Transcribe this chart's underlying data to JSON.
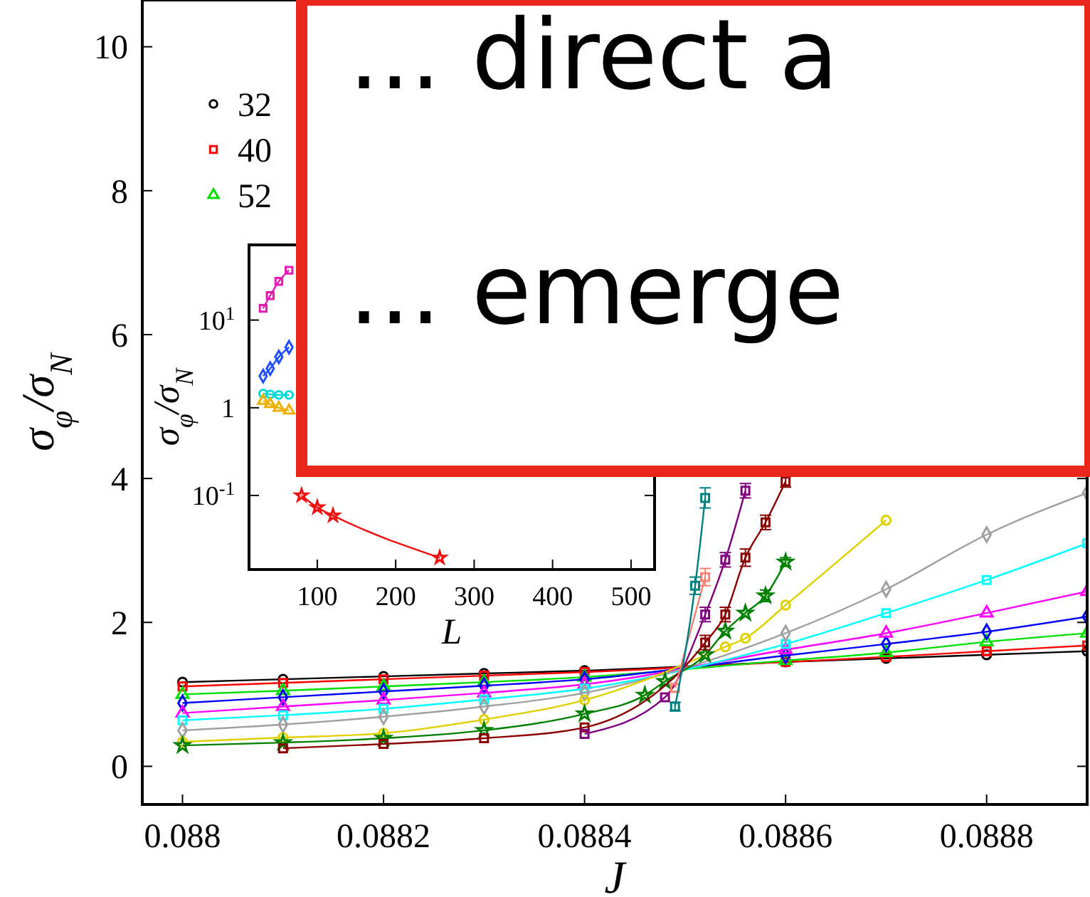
{
  "chart_data": [
    {
      "type": "line",
      "xlabel": "J",
      "ylabel": "σ$_{φ}$/σ$_{N}$",
      "xlim": [
        0.08796,
        0.0889
      ],
      "ylim": [
        -0.53,
        10.65
      ],
      "xticks": [
        0.088,
        0.0882,
        0.0884,
        0.0886,
        0.0888
      ],
      "yticks": [
        0,
        2,
        4,
        6,
        8,
        10
      ],
      "legend": "top left",
      "annotations": [
        "... direct a",
        "... emerge"
      ],
      "series": [
        {
          "name": "32",
          "color": "#000000",
          "marker": "circle",
          "x": [
            0.088,
            0.0881,
            0.0882,
            0.0883,
            0.0884,
            0.0886,
            0.0887,
            0.0888,
            0.0889
          ],
          "values": [
            1.17,
            1.21,
            1.25,
            1.29,
            1.33,
            1.45,
            1.5,
            1.55,
            1.6
          ]
        },
        {
          "name": "40",
          "color": "#ff0000",
          "marker": "square",
          "x": [
            0.088,
            0.0881,
            0.0882,
            0.0883,
            0.0884,
            0.0886,
            0.0887,
            0.0888,
            0.0889
          ],
          "values": [
            1.11,
            1.16,
            1.21,
            1.26,
            1.31,
            1.45,
            1.52,
            1.6,
            1.68
          ]
        },
        {
          "name": "52",
          "color": "#00e000",
          "marker": "triangle",
          "x": [
            0.088,
            0.0881,
            0.0882,
            0.0883,
            0.0884,
            0.0886,
            0.0887,
            0.0888,
            0.0889
          ],
          "values": [
            1.0,
            1.05,
            1.11,
            1.17,
            1.24,
            1.47,
            1.58,
            1.73,
            1.85
          ]
        },
        {
          "color": "#0000ff",
          "marker": "diamond",
          "x": [
            0.088,
            0.0881,
            0.0882,
            0.0883,
            0.0884,
            0.0886,
            0.0887,
            0.0888,
            0.0889
          ],
          "values": [
            0.88,
            0.96,
            1.04,
            1.12,
            1.21,
            1.54,
            1.7,
            1.87,
            2.08
          ]
        },
        {
          "color": "#ff00ff",
          "marker": "triangle",
          "x": [
            0.088,
            0.0881,
            0.0882,
            0.0883,
            0.0884,
            0.0886,
            0.0887,
            0.0888,
            0.0889
          ],
          "values": [
            0.74,
            0.83,
            0.92,
            1.02,
            1.14,
            1.62,
            1.85,
            2.13,
            2.43
          ]
        },
        {
          "color": "#00ffff",
          "marker": "square",
          "x": [
            0.088,
            0.0881,
            0.0882,
            0.0883,
            0.0884,
            0.0886,
            0.0887,
            0.0888,
            0.0889
          ],
          "values": [
            0.64,
            0.71,
            0.8,
            0.93,
            1.08,
            1.7,
            2.13,
            2.59,
            3.1
          ]
        },
        {
          "color": "#a0a0a0",
          "marker": "diamond",
          "x": [
            0.088,
            0.0881,
            0.0882,
            0.0883,
            0.0884,
            0.0886,
            0.0887,
            0.0888,
            0.0889
          ],
          "values": [
            0.5,
            0.58,
            0.69,
            0.83,
            1.02,
            1.85,
            2.46,
            3.22,
            3.8
          ]
        },
        {
          "color": "#e0d000",
          "marker": "circle",
          "x": [
            0.088,
            0.0881,
            0.0882,
            0.0883,
            0.0884,
            0.08854,
            0.08856,
            0.0886,
            0.0887
          ],
          "values": [
            0.34,
            0.4,
            0.46,
            0.65,
            0.92,
            1.66,
            1.78,
            2.24,
            3.42
          ]
        },
        {
          "color": "#008000",
          "marker": "star",
          "x": [
            0.088,
            0.0881,
            0.0882,
            0.0883,
            0.0884,
            0.08846,
            0.08848,
            0.08852,
            0.08854,
            0.08856,
            0.08858,
            0.0886
          ],
          "values": [
            0.29,
            0.33,
            0.39,
            0.5,
            0.73,
            0.99,
            1.18,
            1.55,
            1.88,
            2.13,
            2.37,
            2.84
          ],
          "errors": [
            null,
            null,
            null,
            null,
            null,
            null,
            null,
            null,
            null,
            null,
            0.08,
            0.06
          ]
        },
        {
          "color": "#8b0000",
          "marker": "square",
          "x": [
            0.0881,
            0.0882,
            0.0883,
            0.0884,
            0.08852,
            0.08854,
            0.08856,
            0.08858,
            0.0886
          ],
          "values": [
            0.25,
            0.31,
            0.39,
            0.54,
            1.72,
            2.11,
            2.9,
            3.39,
            3.96
          ],
          "errors": [
            null,
            null,
            null,
            null,
            0.1,
            0.1,
            0.12,
            0.1,
            0.08
          ]
        },
        {
          "color": "#800080",
          "marker": "square",
          "x": [
            0.0884,
            0.08848,
            0.08852,
            0.08854,
            0.08856
          ],
          "values": [
            0.45,
            0.96,
            2.11,
            2.87,
            3.83
          ],
          "errors": [
            null,
            null,
            0.1,
            0.1,
            0.1
          ]
        },
        {
          "color": "#fa8072",
          "marker": "square",
          "x": [
            0.08849,
            0.08852
          ],
          "values": [
            1.09,
            2.63
          ],
          "errors": [
            null,
            0.12
          ]
        },
        {
          "color": "#008080",
          "marker": "square",
          "x": [
            0.08849,
            0.08851,
            0.08852
          ],
          "values": [
            0.83,
            2.51,
            3.73
          ],
          "errors": [
            0.06,
            0.12,
            0.14
          ]
        }
      ]
    },
    {
      "type": "line",
      "xlabel": "L",
      "ylabel": "σ$_{φ}$/σ$_{N}$",
      "log": "y",
      "xlim": [
        13,
        530
      ],
      "ylim": [
        0.0143,
        72
      ],
      "xticks": [
        100,
        200,
        300,
        400,
        500
      ],
      "yticks": [
        {
          "value": 0.1,
          "label": "10$^{-1}$"
        },
        1,
        {
          "value": 10,
          "label": "10$^{1}$"
        }
      ],
      "series": [
        {
          "color": "#e619b3",
          "marker": "square",
          "x": [
            31,
            40,
            51,
            64
          ],
          "values": [
            13.6,
            19,
            27.6,
            37
          ]
        },
        {
          "color": "#1f4fff",
          "marker": "diamond",
          "x": [
            31,
            40,
            51,
            64
          ],
          "values": [
            2.3,
            2.8,
            3.8,
            4.9
          ]
        },
        {
          "color": "#00d8d8",
          "marker": "circle",
          "x": [
            31,
            40,
            51,
            64
          ],
          "values": [
            1.45,
            1.42,
            1.4,
            1.4
          ]
        },
        {
          "color": "#f0b000",
          "marker": "triangle",
          "x": [
            31,
            40,
            51,
            64
          ],
          "values": [
            1.2,
            1.1,
            1.0,
            0.93
          ]
        },
        {
          "color": "#f01010",
          "marker": "star",
          "x": [
            80,
            100,
            120,
            256
          ],
          "values": [
            0.1,
            0.073,
            0.059,
            0.0195
          ]
        }
      ]
    }
  ]
}
